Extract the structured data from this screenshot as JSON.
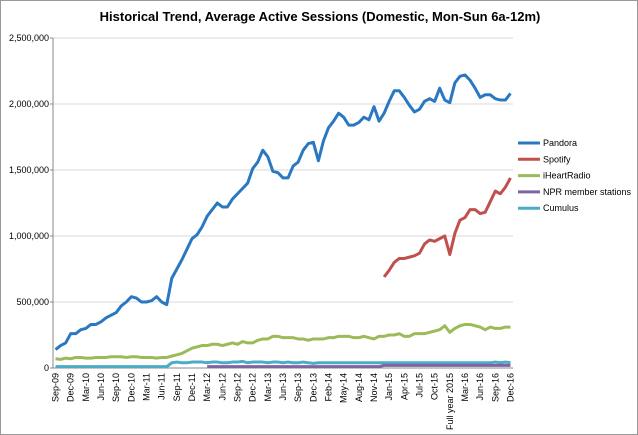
{
  "chart_data": {
    "type": "line",
    "title": "Historical Trend, Average Active Sessions (Domestic, Mon-Sun 6a-12m)",
    "categories": [
      "Sep-09",
      null,
      null,
      "Dec-09",
      null,
      null,
      "Mar-10",
      null,
      null,
      "Jun-10",
      null,
      null,
      "Sep-10",
      null,
      null,
      "Dec-10",
      null,
      null,
      "Mar-11",
      null,
      null,
      "Jun-11",
      null,
      null,
      "Sep-11",
      null,
      null,
      "Dec-11",
      null,
      null,
      "Mar-12",
      null,
      null,
      "Jun-12",
      null,
      null,
      "Sep-12",
      null,
      null,
      "Dec-12",
      null,
      null,
      "Mar-13",
      null,
      null,
      "Jun-13",
      null,
      null,
      "Sep-13",
      null,
      null,
      "Dec-13",
      null,
      null,
      "Feb-14",
      null,
      null,
      "May-14",
      null,
      null,
      "Aug-14",
      null,
      null,
      "Nov-14",
      null,
      null,
      "Jan-15",
      null,
      null,
      "Apr-15",
      null,
      null,
      "Jul-15",
      null,
      null,
      "Oct-15",
      null,
      null,
      "Full year 2015",
      null,
      null,
      "Mar-16",
      null,
      null,
      "Jun-16",
      null,
      null,
      "Sep-16",
      null,
      null,
      "Dec-16"
    ],
    "series": [
      {
        "name": "Pandora",
        "color": "#2a78c2",
        "values": [
          140000,
          170000,
          190000,
          260000,
          260000,
          290000,
          300000,
          330000,
          330000,
          350000,
          380000,
          400000,
          420000,
          470000,
          500000,
          540000,
          530000,
          500000,
          500000,
          510000,
          540000,
          500000,
          480000,
          680000,
          750000,
          820000,
          900000,
          980000,
          1010000,
          1070000,
          1150000,
          1200000,
          1250000,
          1220000,
          1220000,
          1280000,
          1320000,
          1360000,
          1400000,
          1510000,
          1560000,
          1650000,
          1600000,
          1490000,
          1480000,
          1440000,
          1440000,
          1530000,
          1560000,
          1650000,
          1700000,
          1710000,
          1570000,
          1720000,
          1820000,
          1870000,
          1930000,
          1900000,
          1840000,
          1840000,
          1860000,
          1900000,
          1880000,
          1980000,
          1870000,
          1930000,
          2020000,
          2100000,
          2100000,
          2050000,
          1990000,
          1940000,
          1960000,
          2020000,
          2040000,
          2020000,
          2120000,
          2030000,
          2010000,
          2160000,
          2210000,
          2220000,
          2180000,
          2120000,
          2050000,
          2070000,
          2070000,
          2040000,
          2030000,
          2030000,
          2080000
        ]
      },
      {
        "name": "Spotify",
        "color": "#c0504d",
        "values": [
          null,
          null,
          null,
          null,
          null,
          null,
          null,
          null,
          null,
          null,
          null,
          null,
          null,
          null,
          null,
          null,
          null,
          null,
          null,
          null,
          null,
          null,
          null,
          null,
          null,
          null,
          null,
          null,
          null,
          null,
          null,
          null,
          null,
          null,
          null,
          null,
          null,
          null,
          null,
          null,
          null,
          null,
          null,
          null,
          null,
          null,
          null,
          null,
          null,
          null,
          null,
          null,
          null,
          null,
          null,
          null,
          null,
          null,
          null,
          null,
          null,
          null,
          null,
          null,
          null,
          690000,
          740000,
          800000,
          830000,
          830000,
          840000,
          850000,
          870000,
          940000,
          970000,
          960000,
          980000,
          1000000,
          860000,
          1020000,
          1120000,
          1140000,
          1200000,
          1200000,
          1170000,
          1180000,
          1260000,
          1340000,
          1320000,
          1370000,
          1440000
        ]
      },
      {
        "name": "iHeartRadio",
        "color": "#9bbb59",
        "values": [
          70000,
          65000,
          75000,
          70000,
          80000,
          80000,
          75000,
          75000,
          80000,
          80000,
          80000,
          85000,
          85000,
          85000,
          80000,
          85000,
          85000,
          80000,
          80000,
          80000,
          75000,
          80000,
          80000,
          90000,
          100000,
          110000,
          130000,
          150000,
          160000,
          170000,
          170000,
          180000,
          180000,
          170000,
          180000,
          190000,
          180000,
          200000,
          190000,
          190000,
          210000,
          220000,
          220000,
          240000,
          240000,
          230000,
          230000,
          230000,
          220000,
          220000,
          210000,
          220000,
          220000,
          220000,
          230000,
          230000,
          240000,
          240000,
          240000,
          230000,
          230000,
          240000,
          230000,
          220000,
          240000,
          240000,
          250000,
          250000,
          260000,
          240000,
          240000,
          260000,
          260000,
          260000,
          270000,
          280000,
          290000,
          320000,
          270000,
          300000,
          320000,
          330000,
          330000,
          320000,
          310000,
          290000,
          310000,
          300000,
          300000,
          310000,
          310000
        ]
      },
      {
        "name": "NPR member stations",
        "color": "#8064a2",
        "values": [
          null,
          null,
          null,
          null,
          null,
          null,
          null,
          null,
          null,
          null,
          null,
          null,
          null,
          null,
          null,
          null,
          null,
          null,
          null,
          null,
          null,
          null,
          null,
          null,
          null,
          null,
          null,
          null,
          null,
          null,
          10000,
          10000,
          10000,
          10000,
          10000,
          10000,
          10000,
          10000,
          10000,
          10000,
          10000,
          10000,
          10000,
          10000,
          10000,
          10000,
          10000,
          10000,
          10000,
          10000,
          10000,
          10000,
          10000,
          10000,
          10000,
          10000,
          10000,
          10000,
          10000,
          10000,
          10000,
          10000,
          10000,
          10000,
          10000,
          20000,
          20000,
          20000,
          20000,
          20000,
          20000,
          20000,
          20000,
          20000,
          20000,
          20000,
          20000,
          20000,
          20000,
          20000,
          20000,
          20000,
          20000,
          20000,
          20000,
          20000,
          20000,
          20000,
          20000,
          20000,
          20000
        ]
      },
      {
        "name": "Cumulus",
        "color": "#4bacc6",
        "values": [
          10000,
          10000,
          10000,
          10000,
          10000,
          10000,
          10000,
          10000,
          10000,
          10000,
          10000,
          10000,
          10000,
          10000,
          10000,
          10000,
          10000,
          10000,
          10000,
          10000,
          10000,
          10000,
          10000,
          40000,
          45000,
          40000,
          40000,
          45000,
          45000,
          45000,
          40000,
          45000,
          45000,
          40000,
          40000,
          45000,
          45000,
          50000,
          40000,
          45000,
          45000,
          45000,
          40000,
          45000,
          45000,
          40000,
          45000,
          40000,
          40000,
          45000,
          40000,
          35000,
          40000,
          40000,
          40000,
          40000,
          40000,
          40000,
          40000,
          40000,
          40000,
          40000,
          40000,
          40000,
          40000,
          40000,
          40000,
          40000,
          40000,
          40000,
          40000,
          40000,
          40000,
          40000,
          40000,
          40000,
          40000,
          40000,
          40000,
          40000,
          40000,
          40000,
          40000,
          40000,
          40000,
          40000,
          40000,
          45000,
          40000,
          45000,
          40000
        ]
      }
    ],
    "ylim": [
      0,
      2500000
    ],
    "yticks": [
      0,
      {
        "value": 500000,
        "label": "500,000"
      },
      {
        "value": 1000000,
        "label": "1,000,000"
      },
      {
        "value": 1500000,
        "label": "1,500,000"
      },
      {
        "value": 2000000,
        "label": "2,000,000"
      },
      {
        "value": 2500000,
        "label": "2,500,000"
      }
    ],
    "grid": true,
    "legend": "right"
  }
}
